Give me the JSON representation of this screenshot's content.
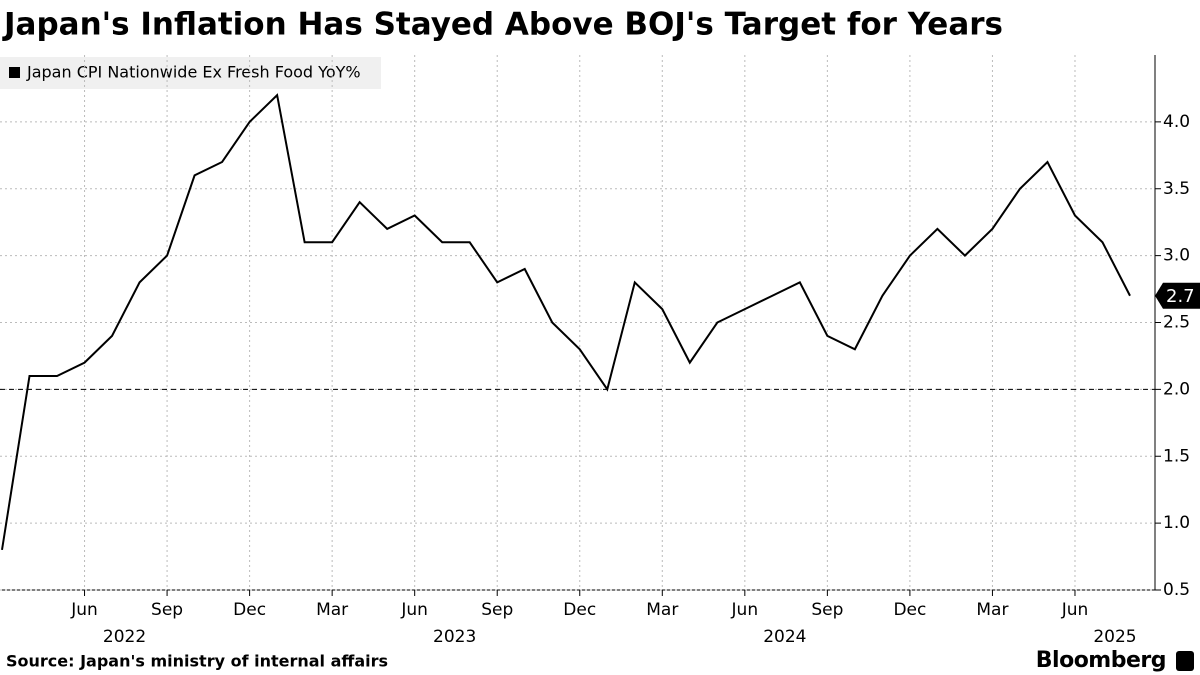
{
  "chart_data": {
    "type": "line",
    "title": "Japan's Inflation Has Stayed Above BOJ's Target for Years",
    "source": "Source: Japan's ministry of internal affairs",
    "brand": "Bloomberg",
    "x": [
      "2022-03",
      "2022-04",
      "2022-05",
      "2022-06",
      "2022-07",
      "2022-08",
      "2022-09",
      "2022-10",
      "2022-11",
      "2022-12",
      "2023-01",
      "2023-02",
      "2023-03",
      "2023-04",
      "2023-05",
      "2023-06",
      "2023-07",
      "2023-08",
      "2023-09",
      "2023-10",
      "2023-11",
      "2023-12",
      "2024-01",
      "2024-02",
      "2024-03",
      "2024-04",
      "2024-05",
      "2024-06",
      "2024-07",
      "2024-08",
      "2024-09",
      "2024-10",
      "2024-11",
      "2024-12",
      "2025-01",
      "2025-02",
      "2025-03",
      "2025-04",
      "2025-05",
      "2025-06",
      "2025-07",
      "2025-08"
    ],
    "series": [
      {
        "name": "Japan CPI Nationwide Ex Fresh Food YoY%",
        "color": "#000000",
        "values": [
          0.8,
          2.1,
          2.1,
          2.2,
          2.4,
          2.8,
          3.0,
          3.6,
          3.7,
          4.0,
          4.2,
          3.1,
          3.1,
          3.4,
          3.2,
          3.3,
          3.1,
          3.1,
          2.8,
          2.9,
          2.5,
          2.3,
          2.0,
          2.8,
          2.6,
          2.2,
          2.5,
          2.6,
          2.7,
          2.8,
          2.4,
          2.3,
          2.7,
          3.0,
          3.2,
          3.0,
          3.2,
          3.5,
          3.7,
          3.3,
          3.1,
          2.7
        ]
      }
    ],
    "xticks": [
      {
        "value": "2022-06",
        "label": "Jun"
      },
      {
        "value": "2022-09",
        "label": "Sep"
      },
      {
        "value": "2022-12",
        "label": "Dec"
      },
      {
        "value": "2023-03",
        "label": "Mar"
      },
      {
        "value": "2023-06",
        "label": "Jun"
      },
      {
        "value": "2023-09",
        "label": "Sep"
      },
      {
        "value": "2023-12",
        "label": "Dec"
      },
      {
        "value": "2024-03",
        "label": "Mar"
      },
      {
        "value": "2024-06",
        "label": "Jun"
      },
      {
        "value": "2024-09",
        "label": "Sep"
      },
      {
        "value": "2024-12",
        "label": "Dec"
      },
      {
        "value": "2025-03",
        "label": "Mar"
      },
      {
        "value": "2025-06",
        "label": "Jun"
      }
    ],
    "year_labels": [
      {
        "value": "2022-06",
        "label": "2022"
      },
      {
        "value": "2023-06",
        "label": "2023"
      },
      {
        "value": "2024-06",
        "label": "2024"
      },
      {
        "value": "2025-06",
        "label": "2025"
      }
    ],
    "ylim": [
      0.5,
      4.5
    ],
    "yticks": [
      {
        "value": 0.5,
        "label": "0.5"
      },
      {
        "value": 1.0,
        "label": "1.0"
      },
      {
        "value": 1.5,
        "label": "1.5"
      },
      {
        "value": 2.0,
        "label": "2.0"
      },
      {
        "value": 2.5,
        "label": "2.5"
      },
      {
        "value": 3.0,
        "label": "3.0"
      },
      {
        "value": 3.5,
        "label": "3.5"
      },
      {
        "value": 4.0,
        "label": "4.0"
      }
    ],
    "reference_line": 2.0,
    "grid": true
  }
}
